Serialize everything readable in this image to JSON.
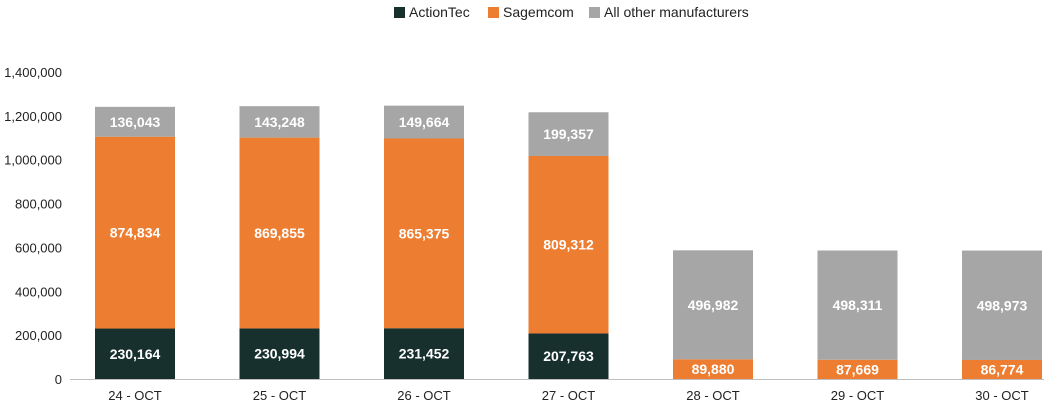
{
  "chart_data": {
    "type": "bar",
    "stacked": true,
    "categories": [
      "24 - OCT",
      "25 - OCT",
      "26 - OCT",
      "27 - OCT",
      "28 - OCT",
      "29 - OCT",
      "30 - OCT"
    ],
    "series": [
      {
        "name": "ActionTec",
        "color": "#17302e",
        "values": [
          230164,
          230994,
          231452,
          207763,
          0,
          0,
          0
        ],
        "labels": [
          "230,164",
          "230,994",
          "231,452",
          "207,763",
          "",
          "",
          ""
        ]
      },
      {
        "name": "Sagemcom",
        "color": "#ed7d31",
        "values": [
          874834,
          869855,
          865375,
          809312,
          89880,
          87669,
          86774
        ],
        "labels": [
          "874,834",
          "869,855",
          "865,375",
          "809,312",
          "89,880",
          "87,669",
          "86,774"
        ]
      },
      {
        "name": "All other manufacturers",
        "color": "#a6a6a6",
        "values": [
          136043,
          143248,
          149664,
          199357,
          496982,
          498311,
          498973
        ],
        "labels": [
          "136,043",
          "143,248",
          "149,664",
          "199,357",
          "496,982",
          "498,311",
          "498,973"
        ]
      }
    ],
    "ylim": [
      0,
      1400000
    ],
    "yticks": [
      0,
      200000,
      400000,
      600000,
      800000,
      1000000,
      1200000,
      1400000
    ],
    "ytick_labels": [
      "0",
      "200,000",
      "400,000",
      "600,000",
      "800,000",
      "1,000,000",
      "1,200,000",
      "1,400,000"
    ],
    "legend_position": "top-center",
    "grid": false
  }
}
